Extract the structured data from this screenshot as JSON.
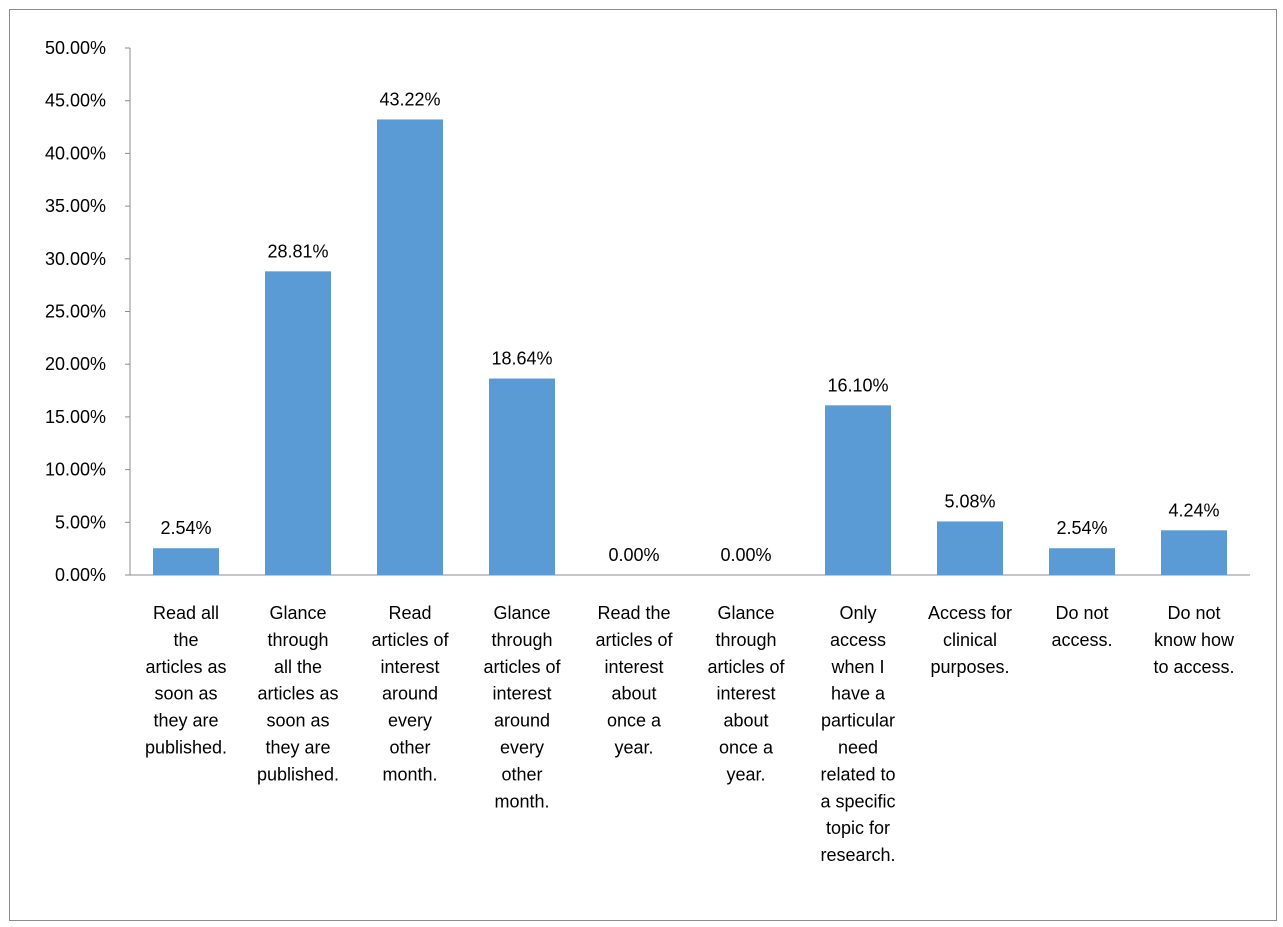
{
  "chart_data": {
    "type": "bar",
    "title": "",
    "xlabel": "",
    "ylabel": "",
    "ylim": [
      0,
      50
    ],
    "y_ticks": [
      "0.00%",
      "5.00%",
      "10.00%",
      "15.00%",
      "20.00%",
      "25.00%",
      "30.00%",
      "35.00%",
      "40.00%",
      "45.00%",
      "50.00%"
    ],
    "grid": false,
    "legend": "none",
    "bar_color": "#5B9BD5",
    "categories": [
      [
        "Read all",
        "the",
        "articles as",
        "soon as",
        "they are",
        "published."
      ],
      [
        "Glance",
        "through",
        "all the",
        "articles as",
        "soon as",
        "they are",
        "published."
      ],
      [
        "Read",
        "articles of",
        "interest",
        "around",
        "every",
        "other",
        "month."
      ],
      [
        "Glance",
        "through",
        "articles of",
        "interest",
        "around",
        "every",
        "other",
        "month."
      ],
      [
        "Read the",
        "articles of",
        "interest",
        "about",
        "once a",
        "year."
      ],
      [
        "Glance",
        "through",
        "articles of",
        "interest",
        "about",
        "once a",
        "year."
      ],
      [
        "Only",
        "access",
        "when I",
        "have a",
        "particular",
        "need",
        "related to",
        "a specific",
        "topic for",
        "research."
      ],
      [
        "Access for",
        "clinical",
        "purposes."
      ],
      [
        "Do not",
        "access."
      ],
      [
        "Do not",
        "know how",
        "to access."
      ]
    ],
    "values": [
      2.54,
      28.81,
      43.22,
      18.64,
      0.0,
      0.0,
      16.1,
      5.08,
      2.54,
      4.24
    ],
    "data_labels": [
      "2.54%",
      "28.81%",
      "43.22%",
      "18.64%",
      "0.00%",
      "0.00%",
      "16.10%",
      "5.08%",
      "2.54%",
      "4.24%"
    ]
  }
}
